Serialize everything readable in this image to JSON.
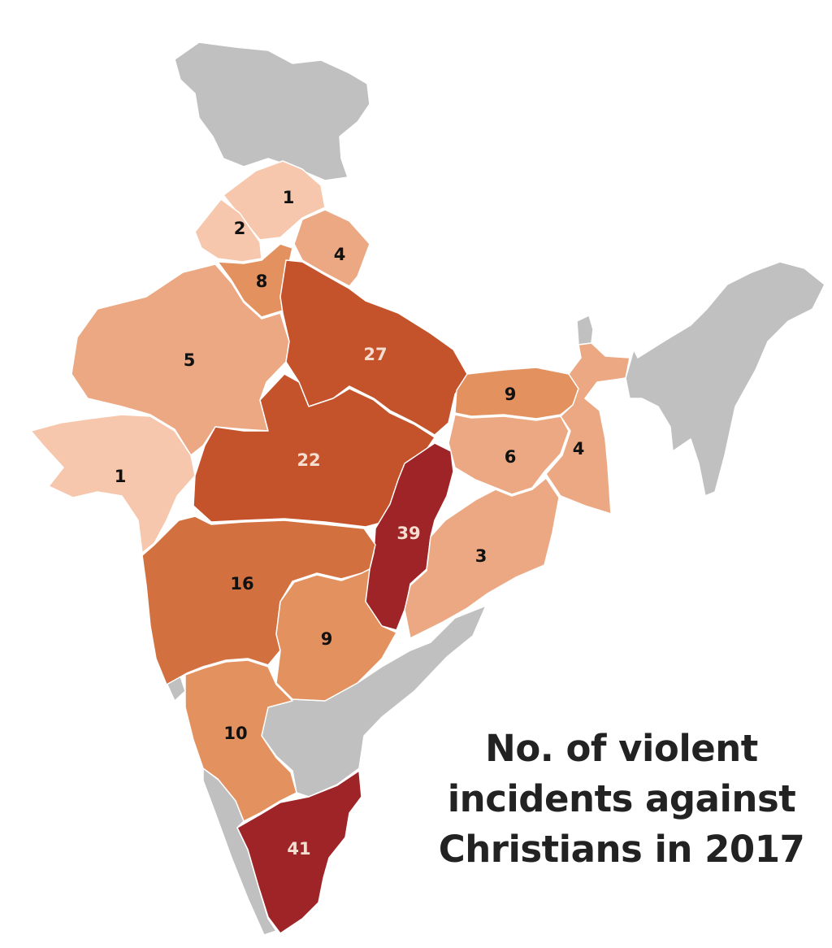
{
  "title_lines": [
    "No. of violent",
    "incidents against",
    "Christians in 2017"
  ],
  "colors": {
    "no_data": "#c0c0c0",
    "scale": [
      "#f6c7ac",
      "#eba882",
      "#e3915f",
      "#d3703f",
      "#c4522b",
      "#9e2427"
    ],
    "label_dark": "#111111",
    "label_light": "#f5ddd0"
  },
  "regions": [
    {
      "id": "kashmir",
      "value": null
    },
    {
      "id": "northeast",
      "value": null
    },
    {
      "id": "sikkim",
      "value": null
    },
    {
      "id": "andhra-pradesh",
      "value": null
    },
    {
      "id": "kerala",
      "value": null
    },
    {
      "id": "goa",
      "value": null
    },
    {
      "id": "himachal-pradesh",
      "value": "1"
    },
    {
      "id": "punjab",
      "value": "2"
    },
    {
      "id": "uttarakhand",
      "value": "4"
    },
    {
      "id": "haryana",
      "value": "8"
    },
    {
      "id": "rajasthan",
      "value": "5"
    },
    {
      "id": "uttar-pradesh",
      "value": "27"
    },
    {
      "id": "gujarat",
      "value": "1"
    },
    {
      "id": "madhya-pradesh",
      "value": "22"
    },
    {
      "id": "bihar",
      "value": "9"
    },
    {
      "id": "jharkhand",
      "value": "6"
    },
    {
      "id": "west-bengal",
      "value": "4"
    },
    {
      "id": "chhattisgarh",
      "value": "39"
    },
    {
      "id": "odisha",
      "value": "3"
    },
    {
      "id": "maharashtra",
      "value": "16"
    },
    {
      "id": "telangana",
      "value": "9"
    },
    {
      "id": "karnataka",
      "value": "10"
    },
    {
      "id": "tamil-nadu",
      "value": "41"
    }
  ]
}
